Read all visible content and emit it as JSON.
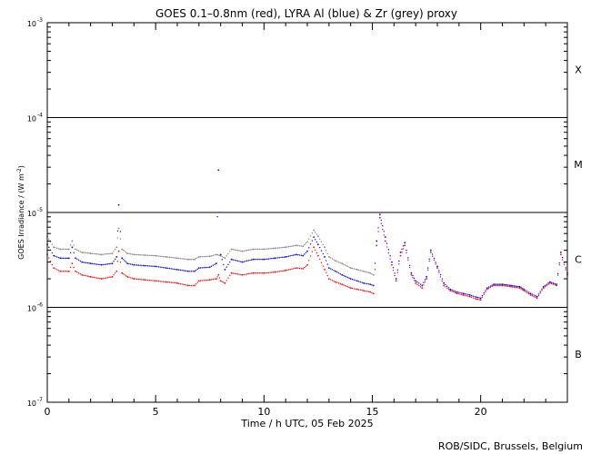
{
  "chart_data": {
    "type": "scatter",
    "title": "GOES 0.1–0.8nm (red), LYRA Al (blue) & Zr (grey) proxy",
    "xlabel": "Time / h UTC, 05 Feb 2025",
    "ylabel_prefix": "GOES Irradiance / (W m",
    "ylabel_exp": "-2",
    "ylabel_suffix": ")",
    "credit": "ROB/SIDC, Brussels, Belgium",
    "xlim": [
      0,
      24
    ],
    "ylim": [
      1e-07,
      0.001
    ],
    "yscale": "log",
    "x_ticks": [
      0,
      5,
      10,
      15,
      20
    ],
    "x_tick_labels": [
      "0",
      "5",
      "10",
      "15",
      "20"
    ],
    "y_ticks": [
      {
        "value": 0.001,
        "base": "10",
        "exp": "-3"
      },
      {
        "value": 0.0001,
        "base": "10",
        "exp": "-4"
      },
      {
        "value": 1e-05,
        "base": "10",
        "exp": "-5"
      },
      {
        "value": 1e-06,
        "base": "10",
        "exp": "-6"
      },
      {
        "value": 1e-07,
        "base": "10",
        "exp": "-7"
      }
    ],
    "class_lines": [
      0.0001,
      1e-05,
      1e-06
    ],
    "flare_classes": [
      {
        "label": "X",
        "value": 0.00032
      },
      {
        "label": "M",
        "value": 3.2e-05
      },
      {
        "label": "C",
        "value": 3.2e-06
      },
      {
        "label": "B",
        "value": 3.2e-07
      }
    ],
    "series": [
      {
        "color": "#ff0000",
        "x": [
          0,
          0.3,
          0.6,
          1.0,
          1.15,
          1.3,
          1.6,
          2.0,
          2.5,
          3.0,
          3.2,
          3.3,
          3.45,
          3.7,
          4.0,
          4.5,
          5.0,
          5.5,
          6.0,
          6.5,
          6.8,
          7.0,
          7.5,
          7.8,
          7.9,
          8.0,
          8.2,
          8.5,
          9.0,
          9.5,
          10.0,
          10.5,
          11.0,
          11.5,
          11.8,
          12.0,
          12.3,
          12.5,
          12.8,
          13.0,
          13.3,
          13.6,
          14.0,
          14.3,
          14.6,
          14.9,
          15.05,
          15.2,
          15.35,
          15.6,
          15.9,
          16.1,
          16.3,
          16.5,
          16.8,
          17.0,
          17.3,
          17.5,
          17.7,
          18.0,
          18.3,
          18.6,
          18.9,
          19.2,
          19.5,
          19.8,
          20.0,
          20.3,
          20.6,
          21.0,
          21.4,
          21.8,
          22.0,
          22.3,
          22.6,
          22.9,
          23.2,
          23.5,
          23.7,
          24.0
        ],
        "y": [
          3.6e-06,
          2.6e-06,
          2.4e-06,
          2.4e-06,
          2.9e-06,
          2.4e-06,
          2.2e-06,
          2.1e-06,
          2e-06,
          2.1e-06,
          2.4e-06,
          3.9e-06,
          2.3e-06,
          2.1e-06,
          2e-06,
          1.95e-06,
          1.9e-06,
          1.85e-06,
          1.8e-06,
          1.7e-06,
          1.7e-06,
          1.9e-06,
          1.95e-06,
          2e-06,
          2.2e-06,
          1.9e-06,
          1.8e-06,
          2.3e-06,
          2.2e-06,
          2.3e-06,
          2.3e-06,
          2.35e-06,
          2.45e-06,
          2.6e-06,
          2.55e-06,
          2.8e-06,
          4.3e-06,
          3.5e-06,
          2.5e-06,
          2e-06,
          1.85e-06,
          1.75e-06,
          1.6e-06,
          1.55e-06,
          1.5e-06,
          1.45e-06,
          1.4e-06,
          4.5e-06,
          8.8e-06,
          5e-06,
          2.8e-06,
          1.9e-06,
          3.5e-06,
          4.5e-06,
          2.2e-06,
          1.8e-06,
          1.6e-06,
          2e-06,
          3.8e-06,
          2.6e-06,
          1.7e-06,
          1.5e-06,
          1.4e-06,
          1.35e-06,
          1.3e-06,
          1.22e-06,
          1.2e-06,
          1.55e-06,
          1.7e-06,
          1.7e-06,
          1.65e-06,
          1.6e-06,
          1.5e-06,
          1.35e-06,
          1.25e-06,
          1.6e-06,
          1.8e-06,
          1.7e-06,
          3.6e-06,
          2.2e-06
        ]
      },
      {
        "color": "#0000ff",
        "x": [
          0,
          0.3,
          0.6,
          1.0,
          1.15,
          1.3,
          1.6,
          2.0,
          2.5,
          3.0,
          3.2,
          3.3,
          3.45,
          3.7,
          4.0,
          4.5,
          5.0,
          5.5,
          6.0,
          6.5,
          6.8,
          7.0,
          7.5,
          7.8,
          7.9,
          8.0,
          8.2,
          8.5,
          9.0,
          9.5,
          10.0,
          10.5,
          11.0,
          11.5,
          11.8,
          12.0,
          12.3,
          12.5,
          12.8,
          13.0,
          13.3,
          13.6,
          14.0,
          14.3,
          14.6,
          14.9,
          15.05,
          15.2,
          15.35,
          15.6,
          15.9,
          16.1,
          16.3,
          16.5,
          16.8,
          17.0,
          17.3,
          17.5,
          17.7,
          18.0,
          18.3,
          18.6,
          18.9,
          19.2,
          19.5,
          19.8,
          20.0,
          20.3,
          20.6,
          21.0,
          21.4,
          21.8,
          22.0,
          22.3,
          22.6,
          22.9,
          23.2,
          23.5,
          23.7,
          24.0
        ],
        "y": [
          4.6e-06,
          3.5e-06,
          3.3e-06,
          3.3e-06,
          4.3e-06,
          3.3e-06,
          3e-06,
          2.9e-06,
          2.8e-06,
          2.9e-06,
          3.4e-06,
          1.2e-05,
          3.3e-06,
          2.9e-06,
          2.8e-06,
          2.75e-06,
          2.7e-06,
          2.6e-06,
          2.5e-06,
          2.4e-06,
          2.4e-06,
          2.6e-06,
          2.65e-06,
          2.9e-06,
          2.8e-05,
          3.6e-06,
          2.5e-06,
          3.2e-06,
          3e-06,
          3.2e-06,
          3.2e-06,
          3.3e-06,
          3.4e-06,
          3.6e-06,
          3.5e-06,
          3.9e-06,
          5.5e-06,
          4.6e-06,
          3.4e-06,
          2.6e-06,
          2.4e-06,
          2.2e-06,
          2e-06,
          1.9e-06,
          1.8e-06,
          1.75e-06,
          1.7e-06,
          5e-06,
          9.5e-06,
          5.5e-06,
          3e-06,
          2e-06,
          3.8e-06,
          4.8e-06,
          2.3e-06,
          1.9e-06,
          1.7e-06,
          2.1e-06,
          4e-06,
          2.7e-06,
          1.8e-06,
          1.55e-06,
          1.45e-06,
          1.4e-06,
          1.35e-06,
          1.28e-06,
          1.25e-06,
          1.6e-06,
          1.75e-06,
          1.75e-06,
          1.7e-06,
          1.65e-06,
          1.55e-06,
          1.4e-06,
          1.3e-06,
          1.65e-06,
          1.85e-06,
          1.75e-06,
          3.8e-06,
          2.3e-06
        ]
      },
      {
        "color": "#808080",
        "x": [
          0,
          0.3,
          0.6,
          1.0,
          1.15,
          1.3,
          1.6,
          2.0,
          2.5,
          3.0,
          3.2,
          3.3,
          3.45,
          3.7,
          4.0,
          4.5,
          5.0,
          5.5,
          6.0,
          6.5,
          6.8,
          7.0,
          7.5,
          7.8,
          8.0,
          8.2,
          8.5,
          9.0,
          9.5,
          10.0,
          10.5,
          11.0,
          11.5,
          11.8,
          12.0,
          12.3,
          12.5,
          12.8,
          13.0,
          13.3,
          13.6,
          14.0,
          14.3,
          14.6,
          14.9,
          15.05
        ],
        "y": [
          5.6e-06,
          4.3e-06,
          4.1e-06,
          4.1e-06,
          5e-06,
          4.1e-06,
          3.8e-06,
          3.7e-06,
          3.6e-06,
          3.7e-06,
          4.3e-06,
          6.8e-06,
          4.1e-06,
          3.7e-06,
          3.6e-06,
          3.55e-06,
          3.5e-06,
          3.4e-06,
          3.3e-06,
          3.2e-06,
          3.2e-06,
          3.4e-06,
          3.45e-06,
          3.6e-06,
          3.5e-06,
          3.3e-06,
          4.1e-06,
          3.9e-06,
          4.1e-06,
          4.1e-06,
          4.2e-06,
          4.3e-06,
          4.5e-06,
          4.4e-06,
          4.9e-06,
          6.5e-06,
          5.6e-06,
          4.3e-06,
          3.4e-06,
          3.1e-06,
          2.9e-06,
          2.6e-06,
          2.5e-06,
          2.4e-06,
          2.3e-06,
          2.2e-06
        ]
      }
    ]
  }
}
